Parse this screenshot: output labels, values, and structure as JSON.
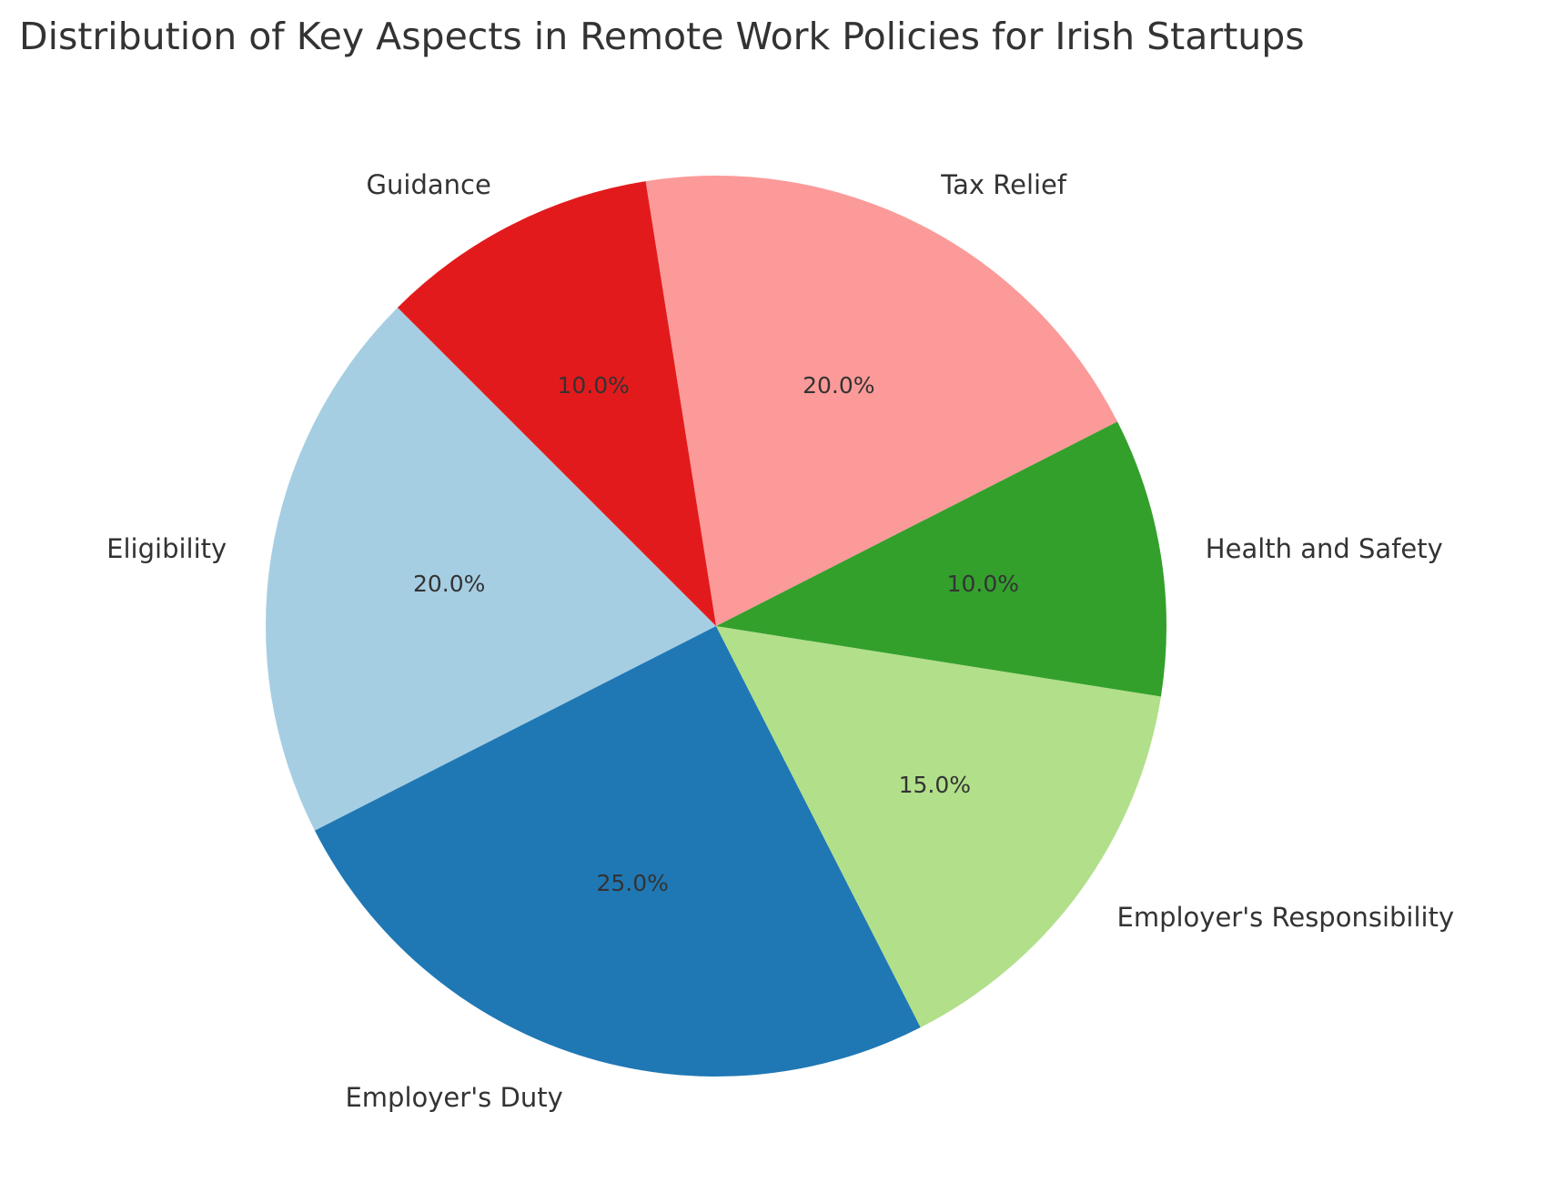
{
  "chart_data": {
    "type": "pie",
    "title": "Distribution of Key Aspects in Remote Work Policies for Irish Startups",
    "start_angle_deg": 135,
    "direction": "counterclockwise",
    "slices": [
      {
        "label": "Eligibility",
        "value": 20,
        "pct_label": "20.0%",
        "color": "#a6cee3"
      },
      {
        "label": "Employer's Duty",
        "value": 25,
        "pct_label": "25.0%",
        "color": "#1f78b4"
      },
      {
        "label": "Employer's Responsibility",
        "value": 15,
        "pct_label": "15.0%",
        "color": "#b2df8a"
      },
      {
        "label": "Health and Safety",
        "value": 10,
        "pct_label": "10.0%",
        "color": "#33a02c"
      },
      {
        "label": "Tax Relief",
        "value": 20,
        "pct_label": "20.0%",
        "color": "#fb9a99"
      },
      {
        "label": "Guidance",
        "value": 10,
        "pct_label": "10.0%",
        "color": "#e31a1c"
      }
    ]
  }
}
